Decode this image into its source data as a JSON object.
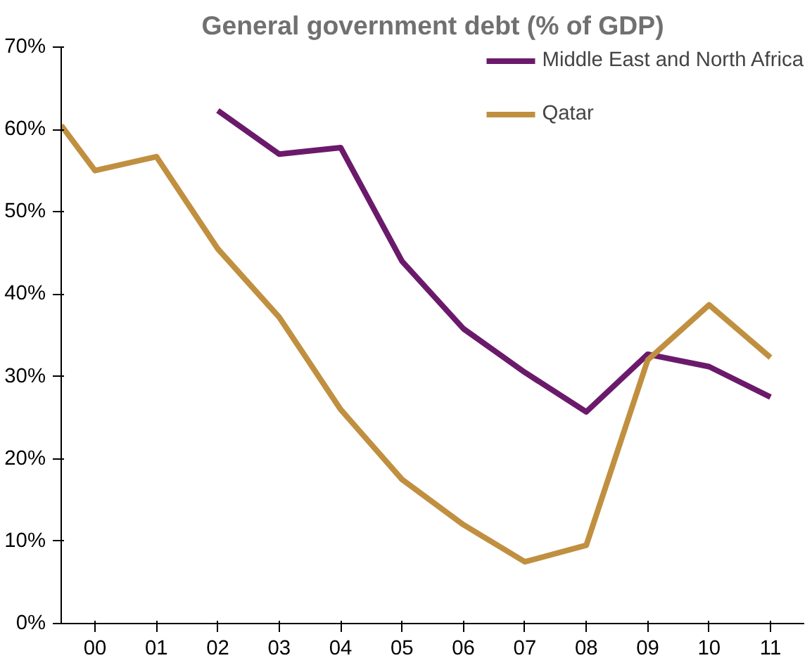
{
  "chart_data": {
    "type": "line",
    "title": "General government debt (% of GDP)",
    "series": [
      {
        "name": "Middle East and North Africa",
        "color": "#6b1a6b",
        "x": [
          2,
          3,
          4,
          5,
          6,
          7,
          8,
          9,
          10,
          11
        ],
        "values": [
          62.3,
          57,
          57.8,
          44,
          35.8,
          30.5,
          25.7,
          32.7,
          31.2,
          27.5
        ]
      },
      {
        "name": "Qatar",
        "color": "#c09040",
        "x": [
          -0.55,
          0,
          1,
          2,
          3,
          4,
          5,
          6,
          7,
          8,
          9,
          10,
          11
        ],
        "values": [
          60.5,
          55,
          56.7,
          45.5,
          37.2,
          26,
          17.5,
          12,
          7.5,
          9.5,
          32,
          38.7,
          32.3
        ]
      }
    ],
    "xlim": [
      -0.55,
      11.55
    ],
    "xticks": [
      {
        "value": 0,
        "label": "00"
      },
      {
        "value": 1,
        "label": "01"
      },
      {
        "value": 2,
        "label": "02"
      },
      {
        "value": 3,
        "label": "03"
      },
      {
        "value": 4,
        "label": "04"
      },
      {
        "value": 5,
        "label": "05"
      },
      {
        "value": 6,
        "label": "06"
      },
      {
        "value": 7,
        "label": "07"
      },
      {
        "value": 8,
        "label": "08"
      },
      {
        "value": 9,
        "label": "09"
      },
      {
        "value": 10,
        "label": "10"
      },
      {
        "value": 11,
        "label": "11"
      }
    ],
    "ylim": [
      0,
      70
    ],
    "yticks": [
      {
        "value": 0,
        "label": "0%"
      },
      {
        "value": 10,
        "label": "10%"
      },
      {
        "value": 20,
        "label": "20%"
      },
      {
        "value": 30,
        "label": "30%"
      },
      {
        "value": 40,
        "label": "40%"
      },
      {
        "value": 50,
        "label": "50%"
      },
      {
        "value": 60,
        "label": "60%"
      },
      {
        "value": 70,
        "label": "70%"
      }
    ],
    "grid": false,
    "legend": "top right",
    "line_style": "solid",
    "marker": "none"
  }
}
